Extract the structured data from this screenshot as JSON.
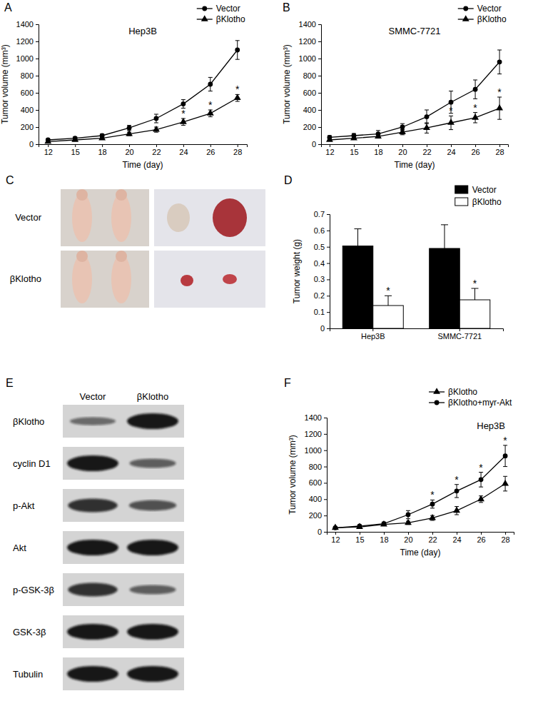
{
  "chart_data": [
    {
      "panel": "A",
      "type": "line",
      "title": "Hep3B",
      "x_label": "Time (day)",
      "y_label": "Tumor volume (mm³)",
      "categories": [
        "12",
        "15",
        "18",
        "20",
        "22",
        "24",
        "26",
        "28"
      ],
      "ylim": [
        0,
        1400
      ],
      "yticks": [
        0,
        200,
        400,
        600,
        800,
        1000,
        1200,
        1400
      ],
      "legend": "upper right",
      "series": [
        {
          "name": "Vector",
          "color": "#000000",
          "marker": "circle",
          "values": [
            50,
            70,
            100,
            190,
            300,
            470,
            700,
            1100
          ],
          "errors": [
            10,
            15,
            20,
            30,
            50,
            50,
            80,
            110
          ]
        },
        {
          "name": "βKlotho",
          "color": "#000000",
          "marker": "triangle",
          "values": [
            30,
            50,
            70,
            120,
            170,
            260,
            360,
            540
          ],
          "errors": [
            5,
            10,
            15,
            20,
            30,
            40,
            40,
            40
          ]
        }
      ],
      "annotations": [
        {
          "x": "24",
          "series": "βKlotho",
          "text": "*"
        },
        {
          "x": "26",
          "series": "βKlotho",
          "text": "*"
        },
        {
          "x": "28",
          "series": "βKlotho",
          "text": "*"
        }
      ]
    },
    {
      "panel": "B",
      "type": "line",
      "title": "SMMC-7721",
      "x_label": "Time (day)",
      "y_label": "Tumor volume (mm³)",
      "categories": [
        "12",
        "15",
        "18",
        "20",
        "22",
        "24",
        "26",
        "28"
      ],
      "ylim": [
        0,
        1400
      ],
      "yticks": [
        0,
        200,
        400,
        600,
        800,
        1000,
        1200,
        1400
      ],
      "legend": "upper right",
      "series": [
        {
          "name": "Vector",
          "color": "#000000",
          "marker": "circle",
          "values": [
            80,
            100,
            120,
            200,
            320,
            490,
            640,
            960
          ],
          "errors": [
            20,
            25,
            40,
            40,
            80,
            130,
            110,
            140
          ]
        },
        {
          "name": "βKlotho",
          "color": "#000000",
          "marker": "triangle",
          "values": [
            50,
            70,
            90,
            140,
            190,
            250,
            310,
            420
          ],
          "errors": [
            10,
            15,
            20,
            30,
            60,
            80,
            60,
            130
          ]
        }
      ],
      "annotations": [
        {
          "x": "24",
          "series": "βKlotho",
          "text": "*"
        },
        {
          "x": "26",
          "series": "βKlotho",
          "text": "*"
        },
        {
          "x": "28",
          "series": "βKlotho",
          "text": "*"
        }
      ]
    },
    {
      "panel": "D",
      "type": "bar",
      "y_label": "Tumor weight (g)",
      "categories": [
        "Hep3B",
        "SMMC-7721"
      ],
      "ylim": [
        0,
        0.7
      ],
      "yticks": [
        0,
        0.1,
        0.2,
        0.3,
        0.4,
        0.5,
        0.6,
        0.7
      ],
      "legend": "upper right",
      "series": [
        {
          "name": "Vector",
          "color": "#000000",
          "values": [
            0.505,
            0.49
          ],
          "errors": [
            0.105,
            0.145
          ]
        },
        {
          "name": "βKlotho",
          "color": "#ffffff",
          "values": [
            0.14,
            0.175
          ],
          "errors": [
            0.06,
            0.07
          ]
        }
      ],
      "annotations": [
        {
          "x": "Hep3B",
          "series": "βKlotho",
          "text": "*"
        },
        {
          "x": "SMMC-7721",
          "series": "βKlotho",
          "text": "*"
        }
      ]
    },
    {
      "panel": "F",
      "type": "line",
      "title": "Hep3B",
      "x_label": "Time (day)",
      "y_label": "Tumor volume (mm³)",
      "categories": [
        "12",
        "15",
        "18",
        "20",
        "22",
        "24",
        "26",
        "28"
      ],
      "ylim": [
        0,
        1400
      ],
      "yticks": [
        0,
        200,
        400,
        600,
        800,
        1000,
        1200,
        1400
      ],
      "legend": "upper right",
      "series": [
        {
          "name": "βKlotho",
          "color": "#000000",
          "marker": "triangle",
          "values": [
            50,
            60,
            90,
            110,
            170,
            260,
            400,
            590
          ],
          "errors": [
            10,
            10,
            15,
            20,
            30,
            50,
            40,
            90
          ]
        },
        {
          "name": "βKlotho+myr-Akt",
          "color": "#000000",
          "marker": "circle",
          "values": [
            50,
            70,
            100,
            210,
            340,
            500,
            640,
            930
          ],
          "errors": [
            10,
            10,
            20,
            50,
            50,
            80,
            90,
            130
          ]
        }
      ],
      "annotations": [
        {
          "x": "22",
          "series": "βKlotho+myr-Akt",
          "text": "*"
        },
        {
          "x": "24",
          "series": "βKlotho+myr-Akt",
          "text": "*"
        },
        {
          "x": "26",
          "series": "βKlotho+myr-Akt",
          "text": "*"
        },
        {
          "x": "28",
          "series": "βKlotho+myr-Akt",
          "text": "*"
        }
      ]
    }
  ],
  "photo": {
    "panel": "C",
    "rows": [
      "Vector",
      "βKlotho"
    ]
  },
  "blot": {
    "panel": "E",
    "columns": [
      "Vector",
      "βKlotho"
    ],
    "rows": [
      {
        "label": "βKlotho",
        "intensity": [
          0.35,
          1
        ]
      },
      {
        "label": "cyclin D1",
        "intensity": [
          1,
          0.45
        ]
      },
      {
        "label": "p-Akt",
        "intensity": [
          0.8,
          0.55
        ]
      },
      {
        "label": "Akt",
        "intensity": [
          1,
          1
        ]
      },
      {
        "label": "p-GSK-3β",
        "intensity": [
          0.8,
          0.45
        ]
      },
      {
        "label": "GSK-3β",
        "intensity": [
          1,
          1
        ]
      },
      {
        "label": "Tubulin",
        "intensity": [
          1,
          1
        ]
      }
    ]
  }
}
